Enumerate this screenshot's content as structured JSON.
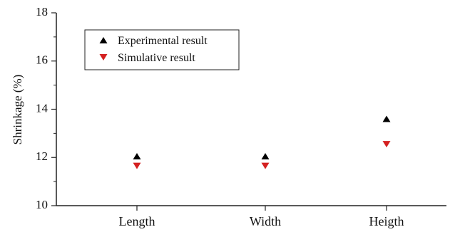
{
  "chart_data": {
    "type": "scatter",
    "title": "",
    "xlabel": "",
    "ylabel": "Shrinkage (%)",
    "categories": [
      "Length",
      "Width",
      "Heigth"
    ],
    "ylim": [
      10,
      18
    ],
    "yticks": [
      10,
      12,
      14,
      16,
      18
    ],
    "grid": false,
    "legend_position": "top-left",
    "series": [
      {
        "name": "Experimental result",
        "marker": "triangle-up",
        "color": "#000000",
        "values": [
          12.05,
          12.05,
          13.6
        ]
      },
      {
        "name": "Simulative result",
        "marker": "triangle-down",
        "color": "#d42020",
        "values": [
          11.65,
          11.65,
          12.55
        ]
      }
    ]
  }
}
